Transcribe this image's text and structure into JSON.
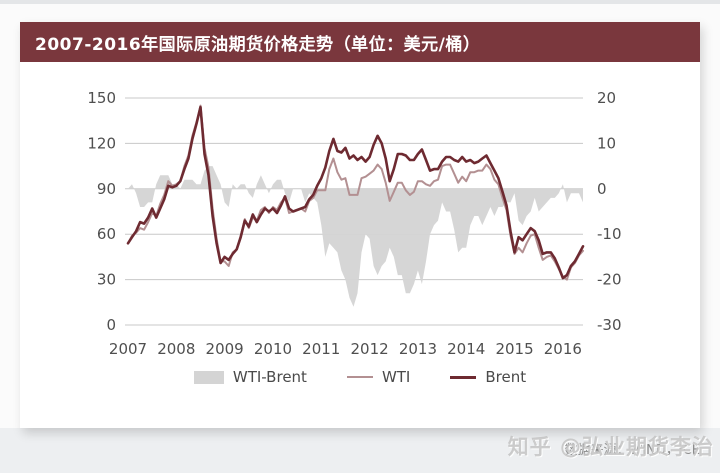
{
  "header": {
    "title": "2007-2016年国际原油期货价格走势（单位：美元/桶）"
  },
  "footer": {
    "data_source": "数据来源：WIND，ICE",
    "watermark": "知乎 @弘业期货李治"
  },
  "chart_data": {
    "type": "line",
    "title": "2007-2016年国际原油期货价格走势",
    "unit": "美元/桶",
    "xlabel": "",
    "ylabel": "",
    "x_start": "2007-01",
    "x_end": "2016-06",
    "frequency": "monthly",
    "x_years": [
      "2007",
      "2008",
      "2009",
      "2010",
      "2011",
      "2012",
      "2013",
      "2014",
      "2015",
      "2016"
    ],
    "left_axis": {
      "range": [
        0,
        150
      ],
      "ticks": [
        0,
        30,
        60,
        90,
        120,
        150
      ]
    },
    "right_axis": {
      "range": [
        -30,
        20
      ],
      "ticks": [
        -30,
        -20,
        -10,
        0,
        10,
        20
      ]
    },
    "grid": true,
    "legend_position": "bottom",
    "colors": {
      "area": "#d4d4d4",
      "wti": "#b39092",
      "brent": "#6e2a31",
      "gridline": "#c8c8c8"
    },
    "series": [
      {
        "name": "WTI-Brent",
        "axis": "right",
        "style": "area",
        "color": "#d4d4d4",
        "values": [
          0,
          1,
          -1,
          -4,
          -4,
          -3,
          -3,
          1,
          3,
          3,
          3,
          1,
          1,
          0,
          2,
          2,
          2,
          1,
          1,
          4,
          5,
          5,
          3,
          1,
          -3,
          -4,
          1,
          0,
          1,
          1,
          -1,
          -2,
          1,
          3,
          1,
          -1,
          1,
          2,
          2,
          -1,
          -3,
          0,
          0,
          0,
          -3,
          -1,
          -2,
          -3,
          -8,
          -15,
          -12,
          -13,
          -14,
          -18,
          -20,
          -24,
          -26,
          -23,
          -14,
          -10,
          -11,
          -17,
          -19,
          -17,
          -16,
          -13,
          -15,
          -19,
          -19,
          -23,
          -23,
          -21,
          -18,
          -21,
          -16,
          -10,
          -8,
          -7,
          -3,
          -5,
          -5,
          -9,
          -14,
          -13,
          -13,
          -8,
          -6,
          -6,
          -8,
          -6,
          -4,
          -6,
          -4,
          -4,
          -3,
          -3,
          -1,
          -7,
          -8,
          -6,
          -5,
          -2,
          -5,
          -4,
          -3,
          -2,
          -2,
          -1,
          1,
          -3,
          -1,
          -1,
          -1,
          -3
        ]
      },
      {
        "name": "WTI",
        "axis": "left",
        "style": "line",
        "color": "#b39092",
        "values": [
          54,
          59,
          61,
          64,
          63,
          68,
          74,
          72,
          80,
          86,
          95,
          92,
          93,
          95,
          105,
          112,
          125,
          134,
          145,
          117,
          104,
          77,
          57,
          42,
          42,
          39,
          48,
          50,
          59,
          70,
          64,
          71,
          69,
          76,
          78,
          74,
          78,
          76,
          81,
          84,
          74,
          75,
          76,
          77,
          75,
          82,
          84,
          89,
          89,
          89,
          103,
          110,
          101,
          96,
          97,
          86,
          86,
          86,
          97,
          98,
          100,
          102,
          106,
          103,
          94,
          82,
          88,
          94,
          94,
          89,
          86,
          88,
          95,
          95,
          93,
          92,
          95,
          96,
          105,
          106,
          106,
          100,
          94,
          98,
          95,
          101,
          101,
          102,
          102,
          106,
          103,
          96,
          93,
          84,
          76,
          59,
          47,
          51,
          48,
          54,
          59,
          60,
          51,
          43,
          45,
          46,
          42,
          37,
          32,
          30,
          38,
          41,
          46,
          49
        ]
      },
      {
        "name": "Brent",
        "axis": "left",
        "style": "line",
        "color": "#6e2a31",
        "values": [
          54,
          58,
          62,
          68,
          67,
          71,
          77,
          71,
          77,
          83,
          92,
          91,
          92,
          95,
          103,
          110,
          123,
          133,
          144,
          113,
          99,
          72,
          54,
          41,
          45,
          43,
          47,
          50,
          58,
          69,
          65,
          73,
          68,
          73,
          77,
          75,
          77,
          74,
          79,
          85,
          77,
          75,
          76,
          77,
          78,
          83,
          86,
          92,
          97,
          104,
          115,
          123,
          115,
          114,
          117,
          110,
          112,
          109,
          111,
          108,
          111,
          119,
          125,
          120,
          110,
          95,
          103,
          113,
          113,
          112,
          109,
          109,
          113,
          116,
          109,
          102,
          103,
          103,
          108,
          111,
          111,
          109,
          108,
          111,
          108,
          109,
          107,
          108,
          110,
          112,
          107,
          102,
          97,
          88,
          79,
          62,
          48,
          58,
          56,
          60,
          64,
          62,
          56,
          47,
          48,
          48,
          44,
          38,
          31,
          33,
          39,
          42,
          47,
          52
        ]
      }
    ]
  }
}
